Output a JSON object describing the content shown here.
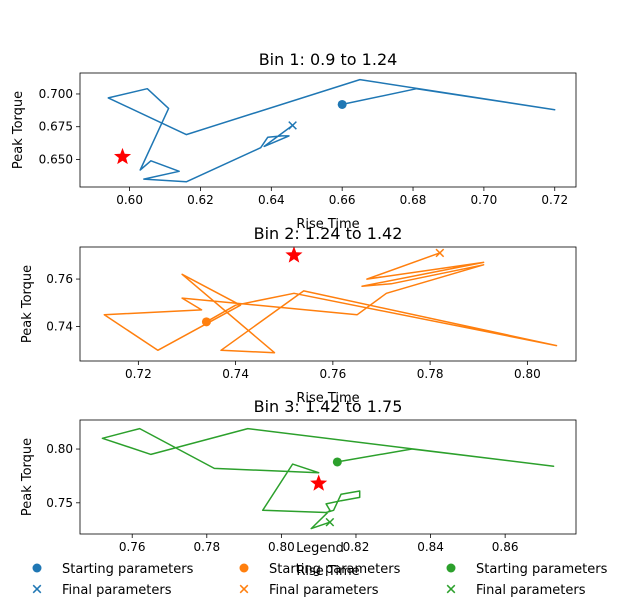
{
  "chart_data": [
    {
      "type": "line",
      "title": "Bin 1: 0.9 to 1.24",
      "xlabel": "Rise Time",
      "ylabel": "Peak Torque",
      "xlim": [
        0.586,
        0.726
      ],
      "ylim": [
        0.629,
        0.716
      ],
      "xticks": [
        0.6,
        0.62,
        0.64,
        0.66,
        0.68,
        0.7,
        0.72
      ],
      "yticks": [
        0.65,
        0.675,
        0.7
      ],
      "color": "#1f77b4",
      "series": [
        {
          "x": [
            0.66,
            0.681,
            0.72,
            0.665,
            0.616,
            0.594,
            0.605,
            0.611,
            0.603,
            0.606,
            0.614,
            0.604,
            0.616,
            0.637,
            0.639,
            0.643,
            0.645,
            0.638,
            0.642,
            0.646
          ],
          "y": [
            0.692,
            0.704,
            0.688,
            0.711,
            0.669,
            0.697,
            0.704,
            0.689,
            0.642,
            0.649,
            0.641,
            0.635,
            0.633,
            0.659,
            0.667,
            0.668,
            0.668,
            0.66,
            0.668,
            0.676
          ]
        }
      ],
      "start": {
        "x": 0.66,
        "y": 0.692
      },
      "final": {
        "x": 0.646,
        "y": 0.676
      },
      "star": {
        "x": 0.598,
        "y": 0.652
      }
    },
    {
      "type": "line",
      "title": "Bin 2: 1.24 to 1.42",
      "xlabel": "Rise Time",
      "ylabel": "Peak Torque",
      "xlim": [
        0.708,
        0.81
      ],
      "ylim": [
        0.7255,
        0.7735
      ],
      "xticks": [
        0.72,
        0.74,
        0.76,
        0.78,
        0.8
      ],
      "yticks": [
        0.74,
        0.76
      ],
      "color": "#ff7f0e",
      "series": [
        {
          "x": [
            0.734,
            0.74,
            0.752,
            0.806,
            0.754,
            0.737,
            0.748,
            0.729,
            0.741,
            0.724,
            0.713,
            0.733,
            0.729,
            0.765,
            0.771,
            0.791,
            0.772,
            0.766,
            0.791,
            0.767,
            0.782
          ],
          "y": [
            0.742,
            0.749,
            0.754,
            0.732,
            0.755,
            0.73,
            0.729,
            0.762,
            0.749,
            0.73,
            0.745,
            0.747,
            0.752,
            0.745,
            0.754,
            0.766,
            0.758,
            0.757,
            0.767,
            0.76,
            0.771
          ]
        }
      ],
      "start": {
        "x": 0.734,
        "y": 0.742
      },
      "final": {
        "x": 0.782,
        "y": 0.771
      },
      "star": {
        "x": 0.752,
        "y": 0.77
      }
    },
    {
      "type": "line",
      "title": "Bin 3: 1.42 to 1.75",
      "xlabel": "Rise Time",
      "ylabel": "Peak Torque",
      "xlim": [
        0.746,
        0.879
      ],
      "ylim": [
        0.721,
        0.827
      ],
      "xticks": [
        0.76,
        0.78,
        0.8,
        0.82,
        0.84,
        0.86
      ],
      "yticks": [
        0.75,
        0.8
      ],
      "color": "#2ca02c",
      "series": [
        {
          "x": [
            0.815,
            0.835,
            0.873,
            0.791,
            0.765,
            0.752,
            0.762,
            0.782,
            0.81,
            0.803,
            0.795,
            0.812,
            0.814,
            0.816,
            0.821,
            0.821,
            0.816,
            0.812,
            0.813,
            0.808,
            0.813
          ],
          "y": [
            0.788,
            0.8,
            0.784,
            0.819,
            0.795,
            0.81,
            0.819,
            0.782,
            0.778,
            0.786,
            0.743,
            0.741,
            0.743,
            0.758,
            0.761,
            0.755,
            0.752,
            0.749,
            0.743,
            0.726,
            0.732
          ]
        }
      ],
      "start": {
        "x": 0.815,
        "y": 0.788
      },
      "final": {
        "x": 0.813,
        "y": 0.732
      },
      "star": {
        "x": 0.81,
        "y": 0.768
      }
    }
  ],
  "legend": {
    "title": "Legend",
    "entries": [
      {
        "label": "Starting parameters",
        "marker": "circle",
        "color": "#1f77b4"
      },
      {
        "label": "Starting parameters",
        "marker": "circle",
        "color": "#ff7f0e"
      },
      {
        "label": "Starting parameters",
        "marker": "circle",
        "color": "#2ca02c"
      },
      {
        "label": "Final parameters",
        "marker": "x",
        "color": "#1f77b4"
      },
      {
        "label": "Final parameters",
        "marker": "x",
        "color": "#ff7f0e"
      },
      {
        "label": "Final parameters",
        "marker": "x",
        "color": "#2ca02c"
      }
    ]
  },
  "star_color": "#ff0000"
}
